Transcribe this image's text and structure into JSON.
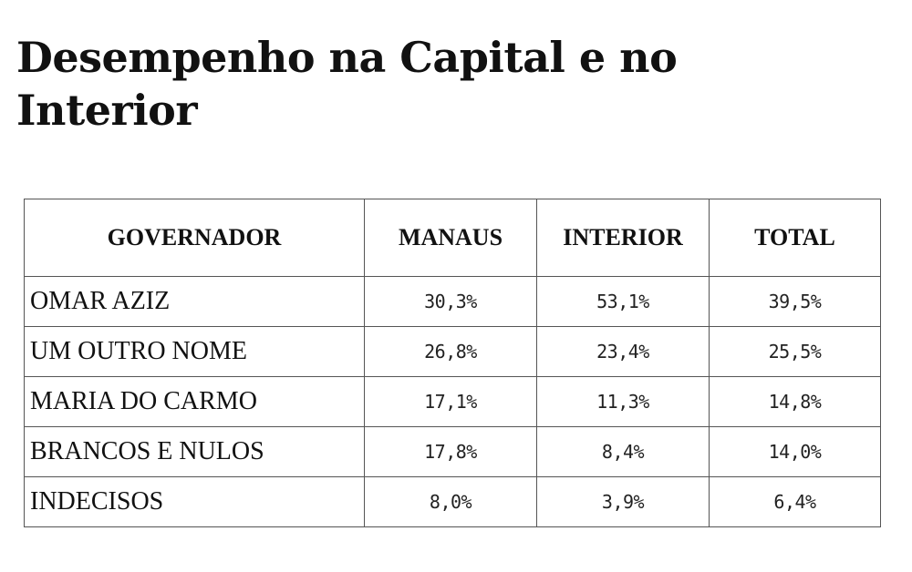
{
  "title": "Desempenho na Capital e no Interior",
  "table": {
    "headers": [
      "GOVERNADOR",
      "MANAUS",
      "INTERIOR",
      "TOTAL"
    ],
    "rows": [
      [
        "OMAR AZIZ",
        "30,3%",
        "53,1%",
        "39,5%"
      ],
      [
        "UM OUTRO NOME",
        "26,8%",
        "23,4%",
        "25,5%"
      ],
      [
        "MARIA DO CARMO",
        "17,1%",
        "11,3%",
        "14,8%"
      ],
      [
        "BRANCOS E NULOS",
        "17,8%",
        "8,4%",
        "14,0%"
      ],
      [
        "INDECISOS",
        "8,0%",
        "3,9%",
        "6,4%"
      ]
    ]
  }
}
